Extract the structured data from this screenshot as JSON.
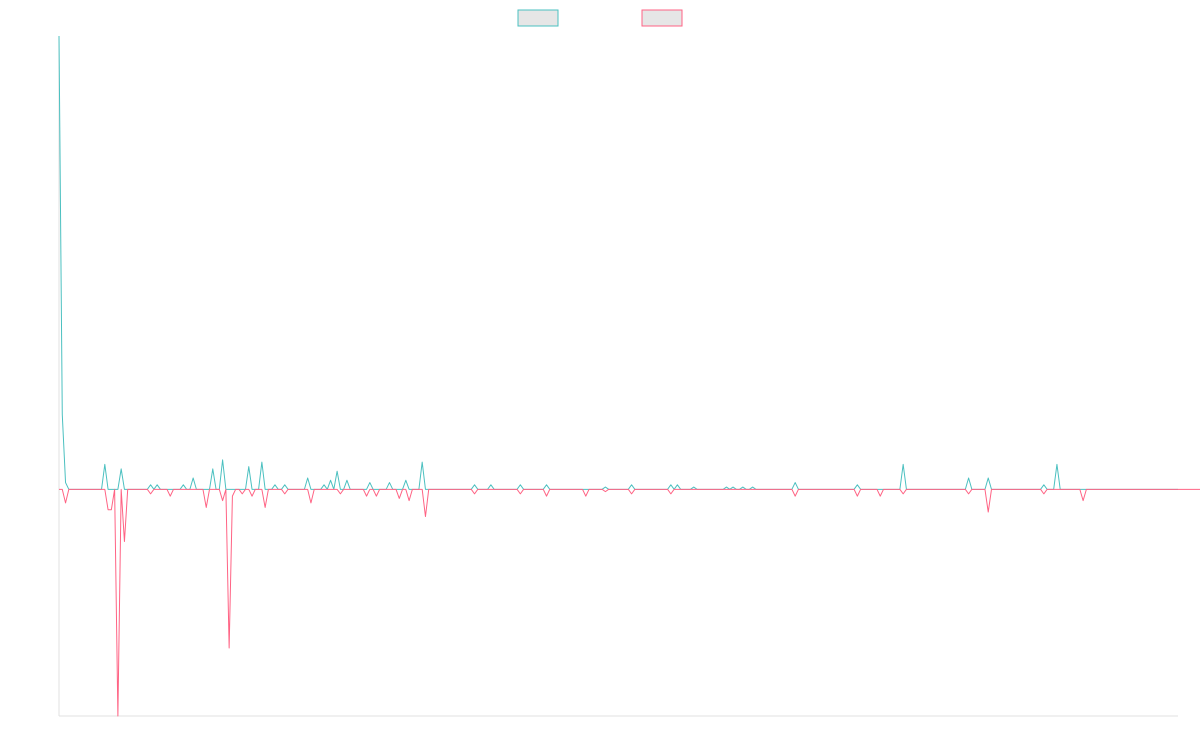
{
  "chart_data": {
    "type": "line",
    "title": "",
    "xlabel": "",
    "ylabel": "",
    "grid": false,
    "legend_position": "top-center",
    "ylim": [
      -1.0,
      2.0
    ],
    "series": [
      {
        "name": "",
        "color": "#4bc0c0",
        "fill": "#e6e6e6",
        "values": [
          2.0,
          0.33,
          0.03,
          0.0,
          0.0,
          0.0,
          0.0,
          0.0,
          0.0,
          0.0,
          0.0,
          0.0,
          0.0,
          0.0,
          0.0,
          0.0,
          0.0,
          0.0,
          0.0,
          0.0,
          0.0,
          0.0,
          0.0,
          0.0,
          0.0,
          0.0,
          0.0,
          0.0,
          0.0,
          0.0,
          0.0,
          0.0,
          0.0,
          0.0,
          0.0,
          0.0,
          0.0,
          0.0,
          0.0,
          0.0,
          0.0,
          0.0,
          0.0,
          0.0,
          0.0,
          0.0,
          0.0,
          0.0,
          0.0,
          0.0,
          0.0,
          0.0,
          0.0,
          0.0,
          0.0,
          0.0,
          0.0,
          0.0,
          0.0,
          0.0,
          0.0,
          0.0,
          0.0,
          0.0,
          0.0,
          0.0,
          0.0,
          0.0,
          0.0,
          0.0,
          0.0,
          0.0,
          0.0,
          0.0,
          0.0,
          0.0,
          0.0,
          0.0,
          0.0,
          0.0,
          0.0,
          0.0,
          0.0,
          0.0,
          0.0,
          0.0,
          0.0,
          0.0,
          0.0,
          0.0,
          0.0,
          0.0,
          0.0,
          0.0,
          0.0,
          0.0,
          0.0,
          0.0,
          0.0,
          0.0,
          0.0,
          0.0,
          0.0,
          0.0,
          0.0,
          0.0,
          0.0,
          0.0,
          0.0,
          0.0,
          0.0,
          0.0,
          0.0,
          0.0,
          0.0,
          0.0,
          0.0,
          0.0,
          0.0,
          0.0,
          0.0,
          0.0,
          0.0,
          0.0,
          0.0,
          0.0,
          0.0,
          0.0,
          0.0,
          0.0,
          0.0,
          0.0,
          0.0,
          0.0,
          0.0,
          0.0,
          0.0,
          0.0,
          0.0,
          0.0,
          0.0,
          0.0,
          0.0,
          0.0,
          0.0,
          0.0,
          0.0,
          0.0,
          0.0,
          0.0,
          0.0,
          0.0,
          0.0,
          0.0,
          0.0,
          0.0,
          0.0,
          0.0,
          0.0,
          0.0,
          0.0,
          0.0,
          0.0,
          0.0,
          0.0,
          0.0,
          0.0,
          0.0,
          0.0,
          0.0,
          0.0,
          0.0,
          0.0,
          0.0,
          0.0,
          0.0,
          0.0,
          0.0,
          0.0,
          0.0,
          0.0,
          0.0,
          0.0,
          0.0,
          0.0,
          0.0,
          0.0,
          0.0,
          0.0,
          0.0,
          0.0,
          0.0,
          0.0,
          0.0,
          0.0,
          0.0,
          0.0,
          0.0,
          0.0,
          0.0,
          0.0,
          0.0,
          0.0,
          0.0,
          0.0,
          0.0,
          0.0,
          0.0,
          0.0,
          0.0,
          0.0,
          0.0,
          0.0,
          0.0,
          0.0,
          0.0,
          0.0,
          0.0,
          0.0,
          0.0,
          0.0,
          0.0,
          0.0,
          0.0,
          0.0,
          0.0,
          0.0,
          0.0,
          0.0,
          0.0,
          0.0,
          0.0,
          0.0,
          0.0,
          0.0,
          0.0,
          0.0,
          0.0,
          0.0,
          0.0,
          0.0,
          0.0,
          0.0,
          0.0,
          0.0,
          0.0,
          0.0,
          0.0,
          0.0,
          0.0,
          0.0,
          0.0,
          0.0,
          0.0,
          0.0,
          0.0,
          0.0,
          0.0,
          0.0,
          0.0,
          0.0,
          0.0,
          0.0,
          0.0,
          0.0,
          0.0,
          0.0,
          0.0,
          0.0,
          0.0,
          0.0,
          0.0,
          0.0,
          0.0,
          0.0,
          0.0,
          0.0,
          0.0,
          0.0,
          0.0,
          0.0,
          0.0,
          0.0,
          0.0,
          0.0,
          0.0,
          0.0,
          0.0,
          0.0,
          0.0,
          0.0,
          0.0,
          0.0,
          0.0,
          0.0,
          0.0,
          0.0,
          0.0,
          0.0,
          0.0,
          0.0,
          0.0,
          0.0,
          0.0,
          0.0,
          0.0,
          0.0,
          0.0,
          0.0,
          0.0,
          0.0,
          0.0,
          0.0,
          0.0,
          0.0,
          0.0,
          0.0,
          0.0,
          0.0,
          0.0,
          0.0,
          0.0,
          0.0,
          0.0,
          0.0,
          0.0,
          0.0,
          0.0,
          0.0,
          0.0,
          0.0,
          0.0,
          0.0,
          0.0,
          0.0,
          0.0,
          0.0,
          0.0,
          0.0,
          0.0,
          0.0,
          0.0,
          0.0
        ]
      },
      {
        "name": "",
        "color": "#ff6384",
        "fill": "#e6e6e6",
        "values": [
          0.0,
          0.0,
          -0.06,
          0.0,
          0.0,
          0.0,
          0.0,
          0.0,
          0.0,
          0.0,
          0.0,
          0.0,
          0.0,
          0.0,
          0.0,
          0.0,
          0.0,
          0.0,
          0.0,
          0.0,
          0.0,
          0.0,
          0.0,
          0.0,
          0.0,
          0.0,
          0.0,
          0.0,
          0.0,
          0.0,
          0.0,
          0.0,
          0.0,
          0.0,
          0.0,
          0.0,
          0.0,
          0.0,
          0.0,
          0.0,
          0.0,
          0.0,
          0.0,
          0.0,
          0.0,
          0.0,
          0.0,
          0.0,
          0.0,
          0.0,
          0.0,
          0.0,
          0.0,
          0.0,
          0.0,
          0.0,
          0.0,
          0.0,
          0.0,
          0.0,
          0.0,
          0.0,
          0.0,
          0.0,
          0.0,
          0.0,
          0.0,
          0.0,
          0.0,
          0.0,
          0.0,
          0.0,
          0.0,
          0.0,
          0.0,
          0.0,
          0.0,
          0.0,
          0.0,
          0.0,
          0.0,
          0.0,
          0.0,
          0.0,
          0.0,
          0.0,
          0.0,
          0.0,
          0.0,
          0.0,
          0.0,
          0.0,
          0.0,
          0.0,
          0.0,
          0.0,
          0.0,
          0.0,
          0.0,
          0.0,
          0.0,
          0.0,
          0.0,
          0.0,
          0.0,
          0.0,
          0.0,
          0.0,
          0.0,
          0.0,
          0.0,
          0.0,
          0.0,
          0.0,
          0.0,
          0.0,
          0.0,
          0.0,
          0.0,
          0.0,
          0.0,
          0.0,
          0.0,
          0.0,
          0.0,
          0.0,
          0.0,
          0.0,
          0.0,
          0.0,
          0.0,
          0.0,
          0.0,
          0.0,
          0.0,
          0.0,
          0.0,
          0.0,
          0.0,
          0.0,
          0.0,
          0.0,
          0.0,
          0.0,
          0.0,
          0.0,
          0.0,
          0.0,
          0.0,
          0.0,
          0.0,
          0.0,
          0.0,
          0.0,
          0.0,
          0.0,
          0.0,
          0.0,
          0.0,
          0.0,
          0.0,
          0.0,
          0.0,
          0.0,
          0.0,
          0.0,
          0.0,
          0.0,
          0.0,
          0.0,
          0.0,
          0.0,
          0.0,
          0.0,
          0.0,
          0.0,
          0.0,
          0.0,
          0.0,
          0.0,
          0.0,
          0.0,
          0.0,
          0.0,
          0.0,
          0.0,
          0.0,
          0.0,
          0.0,
          0.0,
          0.0,
          0.0,
          0.0,
          0.0,
          0.0,
          0.0,
          0.0,
          0.0,
          0.0,
          0.0,
          0.0,
          0.0,
          0.0,
          0.0,
          0.0,
          0.0,
          0.0,
          0.0,
          0.0,
          0.0,
          0.0,
          0.0,
          0.0,
          0.0,
          0.0,
          0.0,
          0.0,
          0.0,
          0.0,
          0.0,
          0.0,
          0.0,
          0.0,
          0.0,
          0.0,
          0.0,
          0.0,
          0.0,
          0.0,
          0.0,
          0.0,
          0.0,
          0.0,
          0.0,
          0.0,
          0.0,
          0.0,
          0.0,
          0.0,
          0.0,
          0.0,
          0.0,
          0.0,
          0.0,
          0.0,
          0.0,
          0.0,
          0.0,
          0.0,
          0.0,
          0.0,
          0.0,
          0.0,
          0.0,
          0.0,
          0.0,
          0.0,
          0.0,
          0.0,
          0.0,
          0.0,
          0.0,
          0.0,
          0.0,
          0.0,
          0.0,
          0.0,
          0.0,
          0.0,
          0.0,
          0.0,
          0.0,
          0.0,
          0.0,
          0.0,
          0.0,
          0.0,
          0.0,
          0.0,
          0.0,
          0.0,
          0.0,
          0.0,
          0.0,
          0.0,
          0.0,
          0.0,
          0.0,
          0.0,
          0.0,
          0.0,
          0.0,
          0.0,
          0.0,
          0.0,
          0.0,
          0.0,
          0.0,
          0.0,
          0.0,
          0.0,
          0.0,
          0.0,
          0.0,
          0.0,
          0.0,
          0.0,
          0.0,
          0.0,
          0.0,
          0.0,
          0.0,
          0.0,
          0.0,
          0.0,
          0.0,
          0.0,
          0.0,
          0.0,
          0.0,
          0.0,
          0.0,
          0.0,
          0.0,
          0.0,
          0.0,
          0.0,
          0.0,
          0.0,
          0.0,
          0.0,
          0.0,
          0.0,
          0.0,
          0.0,
          0.0,
          0.0,
          0.0,
          0.0,
          0.0,
          0.0,
          0.0,
          0.0,
          0.0,
          0.0,
          0.0,
          0.0,
          0.0,
          0.0,
          0.0,
          0.0,
          0.0,
          0.0,
          0.0,
          0.0,
          0.0,
          0.0,
          0.0,
          0.0,
          0.0,
          0.0,
          0.0,
          0.0,
          0.0
        ]
      }
    ],
    "spikes": [
      {
        "series": 0,
        "i": 14,
        "v": 0.11
      },
      {
        "series": 0,
        "i": 19,
        "v": 0.09
      },
      {
        "series": 1,
        "i": 15,
        "v": -0.09
      },
      {
        "series": 1,
        "i": 16,
        "v": -0.09
      },
      {
        "series": 1,
        "i": 18,
        "v": -1.0
      },
      {
        "series": 1,
        "i": 20,
        "v": -0.23
      },
      {
        "series": 0,
        "i": 28,
        "v": 0.02
      },
      {
        "series": 1,
        "i": 28,
        "v": -0.02
      },
      {
        "series": 0,
        "i": 30,
        "v": 0.02
      },
      {
        "series": 1,
        "i": 34,
        "v": -0.03
      },
      {
        "series": 0,
        "i": 38,
        "v": 0.02
      },
      {
        "series": 0,
        "i": 41,
        "v": 0.05
      },
      {
        "series": 1,
        "i": 45,
        "v": -0.08
      },
      {
        "series": 0,
        "i": 47,
        "v": 0.09
      },
      {
        "series": 0,
        "i": 50,
        "v": 0.13
      },
      {
        "series": 1,
        "i": 50,
        "v": -0.05
      },
      {
        "series": 1,
        "i": 52,
        "v": -0.7
      },
      {
        "series": 1,
        "i": 53,
        "v": -0.03
      },
      {
        "series": 1,
        "i": 56,
        "v": -0.02
      },
      {
        "series": 0,
        "i": 58,
        "v": 0.1
      },
      {
        "series": 1,
        "i": 59,
        "v": -0.03
      },
      {
        "series": 0,
        "i": 62,
        "v": 0.12
      },
      {
        "series": 1,
        "i": 63,
        "v": -0.08
      },
      {
        "series": 0,
        "i": 66,
        "v": 0.02
      },
      {
        "series": 0,
        "i": 69,
        "v": 0.02
      },
      {
        "series": 1,
        "i": 69,
        "v": -0.02
      },
      {
        "series": 0,
        "i": 76,
        "v": 0.05
      },
      {
        "series": 1,
        "i": 77,
        "v": -0.06
      },
      {
        "series": 0,
        "i": 81,
        "v": 0.02
      },
      {
        "series": 0,
        "i": 83,
        "v": 0.04
      },
      {
        "series": 0,
        "i": 85,
        "v": 0.08
      },
      {
        "series": 1,
        "i": 86,
        "v": -0.02
      },
      {
        "series": 0,
        "i": 88,
        "v": 0.04
      },
      {
        "series": 1,
        "i": 94,
        "v": -0.03
      },
      {
        "series": 0,
        "i": 95,
        "v": 0.03
      },
      {
        "series": 1,
        "i": 97,
        "v": -0.03
      },
      {
        "series": 0,
        "i": 101,
        "v": 0.03
      },
      {
        "series": 1,
        "i": 104,
        "v": -0.04
      },
      {
        "series": 0,
        "i": 106,
        "v": 0.04
      },
      {
        "series": 1,
        "i": 107,
        "v": -0.05
      },
      {
        "series": 0,
        "i": 111,
        "v": 0.12
      },
      {
        "series": 1,
        "i": 112,
        "v": -0.12
      },
      {
        "series": 0,
        "i": 127,
        "v": 0.02
      },
      {
        "series": 1,
        "i": 127,
        "v": -0.02
      },
      {
        "series": 0,
        "i": 132,
        "v": 0.02
      },
      {
        "series": 0,
        "i": 141,
        "v": 0.02
      },
      {
        "series": 1,
        "i": 141,
        "v": -0.02
      },
      {
        "series": 0,
        "i": 149,
        "v": 0.02
      },
      {
        "series": 1,
        "i": 149,
        "v": -0.03
      },
      {
        "series": 1,
        "i": 161,
        "v": -0.03
      },
      {
        "series": 0,
        "i": 167,
        "v": 0.01
      },
      {
        "series": 1,
        "i": 167,
        "v": -0.01
      },
      {
        "series": 0,
        "i": 175,
        "v": 0.02
      },
      {
        "series": 1,
        "i": 175,
        "v": -0.02
      },
      {
        "series": 0,
        "i": 187,
        "v": 0.02
      },
      {
        "series": 1,
        "i": 187,
        "v": -0.02
      },
      {
        "series": 0,
        "i": 189,
        "v": 0.02
      },
      {
        "series": 0,
        "i": 194,
        "v": 0.01
      },
      {
        "series": 0,
        "i": 204,
        "v": 0.01
      },
      {
        "series": 0,
        "i": 206,
        "v": 0.01
      },
      {
        "series": 0,
        "i": 209,
        "v": 0.01
      },
      {
        "series": 0,
        "i": 212,
        "v": 0.01
      },
      {
        "series": 0,
        "i": 225,
        "v": 0.03
      },
      {
        "series": 1,
        "i": 225,
        "v": -0.03
      },
      {
        "series": 1,
        "i": 244,
        "v": -0.03
      },
      {
        "series": 0,
        "i": 244,
        "v": 0.02
      },
      {
        "series": 1,
        "i": 251,
        "v": -0.03
      },
      {
        "series": 0,
        "i": 258,
        "v": 0.11
      },
      {
        "series": 1,
        "i": 258,
        "v": -0.02
      },
      {
        "series": 0,
        "i": 278,
        "v": 0.05
      },
      {
        "series": 1,
        "i": 278,
        "v": -0.02
      },
      {
        "series": 0,
        "i": 284,
        "v": 0.05
      },
      {
        "series": 1,
        "i": 284,
        "v": -0.1
      },
      {
        "series": 0,
        "i": 301,
        "v": 0.02
      },
      {
        "series": 1,
        "i": 301,
        "v": -0.02
      },
      {
        "series": 0,
        "i": 305,
        "v": 0.11
      },
      {
        "series": 1,
        "i": 313,
        "v": -0.05
      }
    ]
  }
}
